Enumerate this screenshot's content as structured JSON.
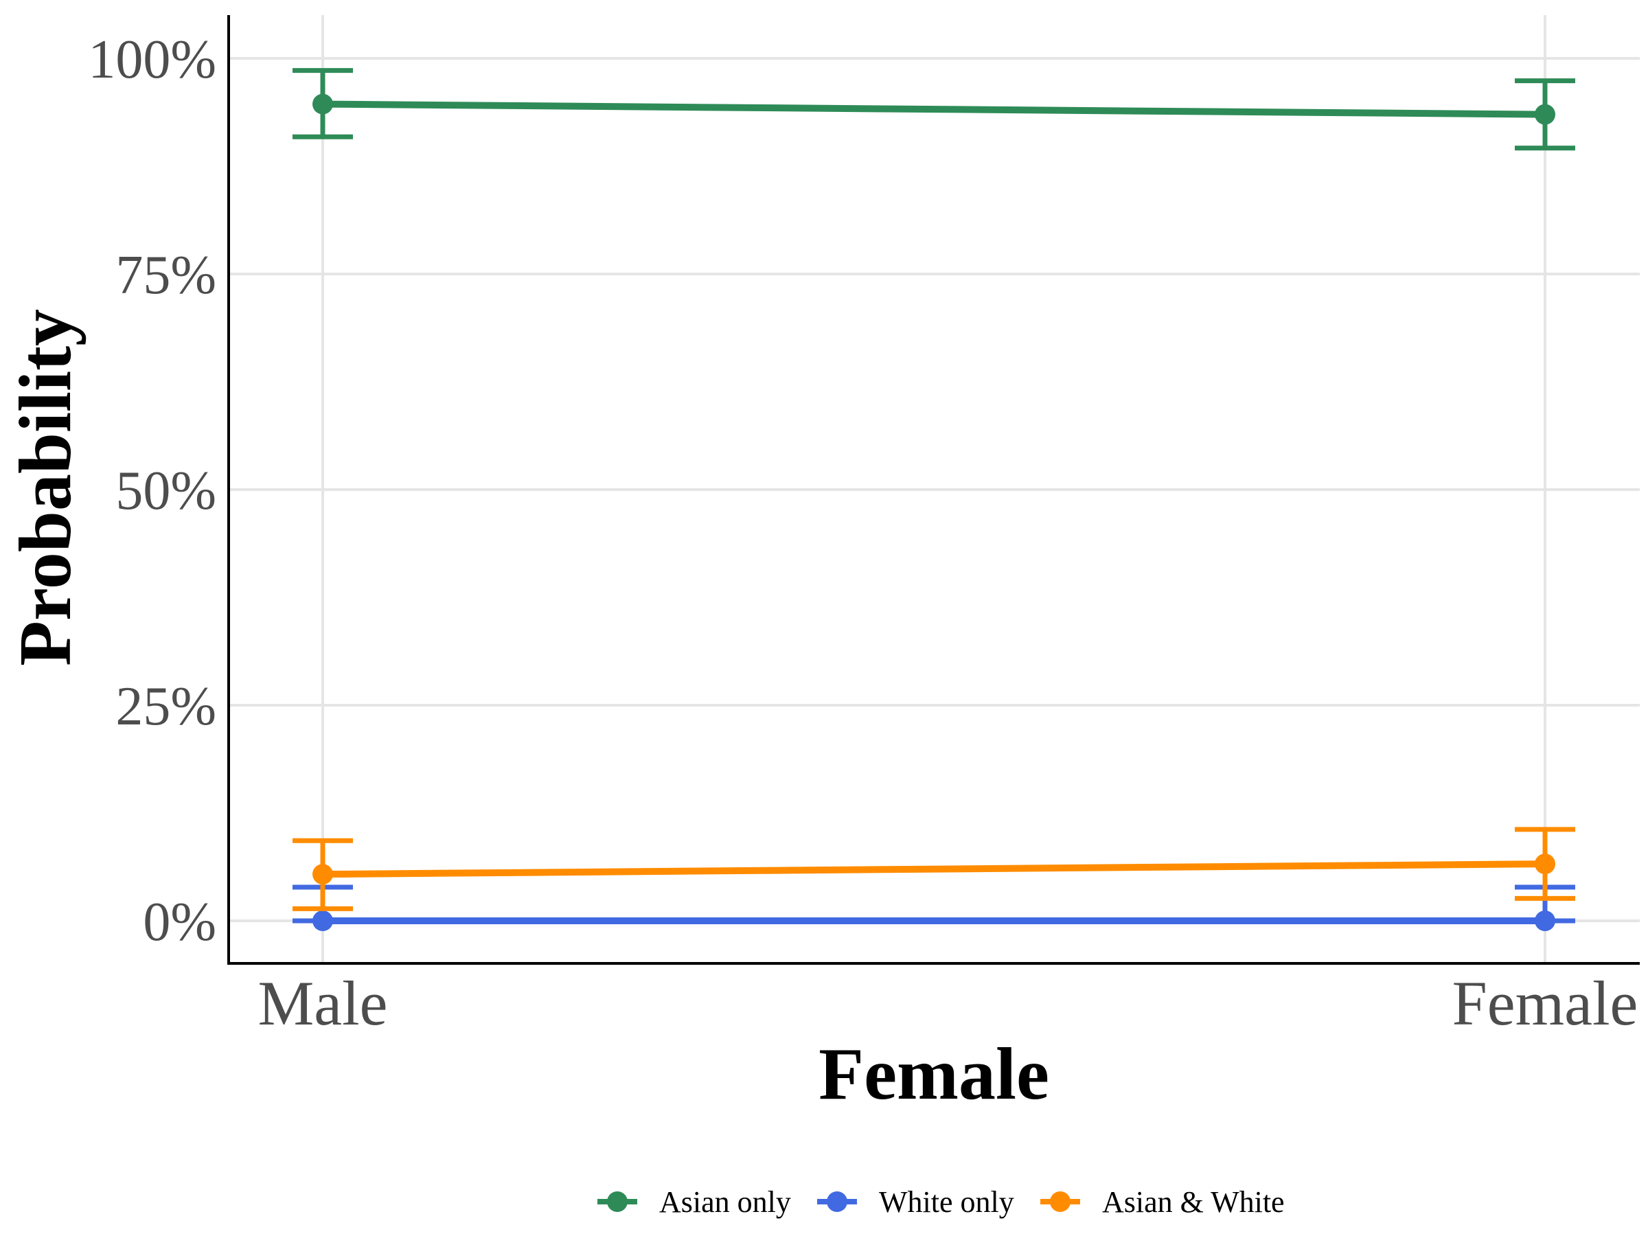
{
  "chart_data": {
    "type": "line",
    "categories": [
      "Male",
      "Female"
    ],
    "xlabel": "Female",
    "ylabel": "Probability",
    "ylim": [
      -0.05,
      1.05
    ],
    "yticks": [
      0,
      0.25,
      0.5,
      0.75,
      1.0
    ],
    "ytick_labels": [
      "0%",
      "25%",
      "50%",
      "75%",
      "100%"
    ],
    "grid": true,
    "legend_position": "bottom",
    "series": [
      {
        "name": "Asian only",
        "color": "#2e8b57",
        "values": [
          0.947,
          0.935
        ],
        "lower": [
          0.909,
          0.896
        ],
        "upper": [
          0.986,
          0.974
        ]
      },
      {
        "name": "White only",
        "color": "#4169e1",
        "values": [
          0.0,
          0.0
        ],
        "lower": [
          0.0,
          0.0
        ],
        "upper": [
          0.039,
          0.039
        ]
      },
      {
        "name": "Asian & White",
        "color": "#ff8c00",
        "values": [
          0.054,
          0.066
        ],
        "lower": [
          0.014,
          0.026
        ],
        "upper": [
          0.093,
          0.106
        ]
      }
    ]
  }
}
